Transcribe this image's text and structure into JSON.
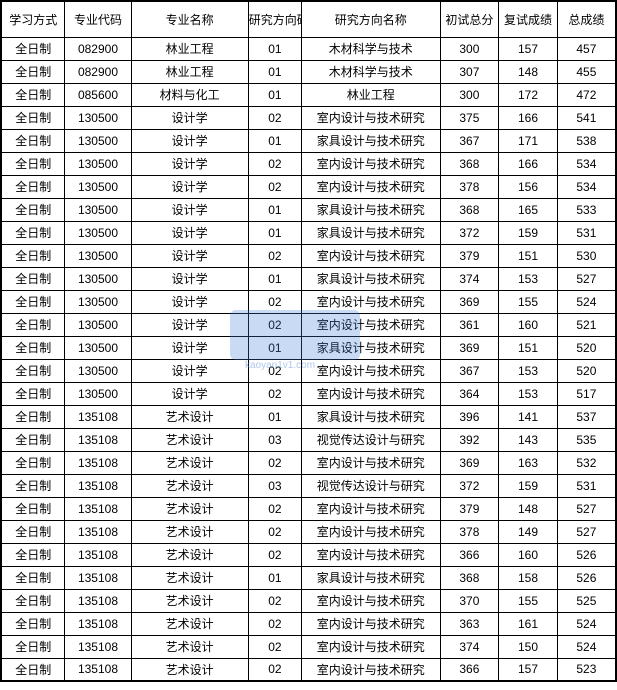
{
  "table": {
    "columns": [
      {
        "label": "学习方式",
        "class": "col-mode"
      },
      {
        "label": "专业代码",
        "class": "col-code"
      },
      {
        "label": "专业名称",
        "class": "col-name"
      },
      {
        "label": "研究方向码",
        "class": "col-dircode"
      },
      {
        "label": "研究方向名称",
        "class": "col-dirname"
      },
      {
        "label": "初试总分",
        "class": "col-prelim"
      },
      {
        "label": "复试成绩",
        "class": "col-retest"
      },
      {
        "label": "总成绩",
        "class": "col-total"
      }
    ],
    "rows": [
      [
        "全日制",
        "082900",
        "林业工程",
        "01",
        "木材科学与技术",
        "300",
        "157",
        "457"
      ],
      [
        "全日制",
        "082900",
        "林业工程",
        "01",
        "木材科学与技术",
        "307",
        "148",
        "455"
      ],
      [
        "全日制",
        "085600",
        "材料与化工",
        "01",
        "林业工程",
        "300",
        "172",
        "472"
      ],
      [
        "全日制",
        "130500",
        "设计学",
        "02",
        "室内设计与技术研究",
        "375",
        "166",
        "541"
      ],
      [
        "全日制",
        "130500",
        "设计学",
        "01",
        "家具设计与技术研究",
        "367",
        "171",
        "538"
      ],
      [
        "全日制",
        "130500",
        "设计学",
        "02",
        "室内设计与技术研究",
        "368",
        "166",
        "534"
      ],
      [
        "全日制",
        "130500",
        "设计学",
        "02",
        "室内设计与技术研究",
        "378",
        "156",
        "534"
      ],
      [
        "全日制",
        "130500",
        "设计学",
        "01",
        "家具设计与技术研究",
        "368",
        "165",
        "533"
      ],
      [
        "全日制",
        "130500",
        "设计学",
        "01",
        "家具设计与技术研究",
        "372",
        "159",
        "531"
      ],
      [
        "全日制",
        "130500",
        "设计学",
        "02",
        "室内设计与技术研究",
        "379",
        "151",
        "530"
      ],
      [
        "全日制",
        "130500",
        "设计学",
        "01",
        "家具设计与技术研究",
        "374",
        "153",
        "527"
      ],
      [
        "全日制",
        "130500",
        "设计学",
        "02",
        "室内设计与技术研究",
        "369",
        "155",
        "524"
      ],
      [
        "全日制",
        "130500",
        "设计学",
        "02",
        "室内设计与技术研究",
        "361",
        "160",
        "521"
      ],
      [
        "全日制",
        "130500",
        "设计学",
        "01",
        "家具设计与技术研究",
        "369",
        "151",
        "520"
      ],
      [
        "全日制",
        "130500",
        "设计学",
        "02",
        "室内设计与技术研究",
        "367",
        "153",
        "520"
      ],
      [
        "全日制",
        "130500",
        "设计学",
        "02",
        "室内设计与技术研究",
        "364",
        "153",
        "517"
      ],
      [
        "全日制",
        "135108",
        "艺术设计",
        "01",
        "家具设计与技术研究",
        "396",
        "141",
        "537"
      ],
      [
        "全日制",
        "135108",
        "艺术设计",
        "03",
        "视觉传达设计与研究",
        "392",
        "143",
        "535"
      ],
      [
        "全日制",
        "135108",
        "艺术设计",
        "02",
        "室内设计与技术研究",
        "369",
        "163",
        "532"
      ],
      [
        "全日制",
        "135108",
        "艺术设计",
        "03",
        "视觉传达设计与研究",
        "372",
        "159",
        "531"
      ],
      [
        "全日制",
        "135108",
        "艺术设计",
        "02",
        "室内设计与技术研究",
        "379",
        "148",
        "527"
      ],
      [
        "全日制",
        "135108",
        "艺术设计",
        "02",
        "室内设计与技术研究",
        "378",
        "149",
        "527"
      ],
      [
        "全日制",
        "135108",
        "艺术设计",
        "02",
        "室内设计与技术研究",
        "366",
        "160",
        "526"
      ],
      [
        "全日制",
        "135108",
        "艺术设计",
        "01",
        "家具设计与技术研究",
        "368",
        "158",
        "526"
      ],
      [
        "全日制",
        "135108",
        "艺术设计",
        "02",
        "室内设计与技术研究",
        "370",
        "155",
        "525"
      ],
      [
        "全日制",
        "135108",
        "艺术设计",
        "02",
        "室内设计与技术研究",
        "363",
        "161",
        "524"
      ],
      [
        "全日制",
        "135108",
        "艺术设计",
        "02",
        "室内设计与技术研究",
        "374",
        "150",
        "524"
      ],
      [
        "全日制",
        "135108",
        "艺术设计",
        "02",
        "室内设计与技术研究",
        "366",
        "157",
        "523"
      ]
    ],
    "border_color": "#000000",
    "background_color": "#ffffff",
    "text_color": "#000000",
    "header_font_size": 12,
    "cell_font_size": 12
  },
  "watermark": {
    "text": "kaoyan1v1.com",
    "color": "#3b7bd6"
  }
}
